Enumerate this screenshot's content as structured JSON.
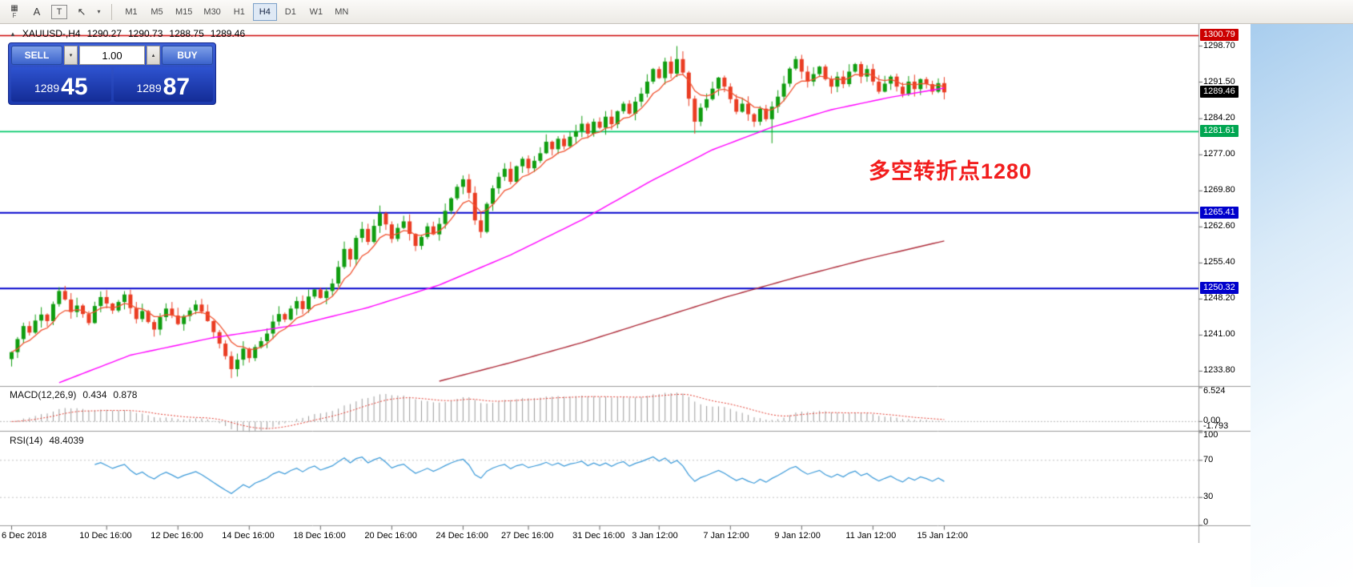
{
  "toolbar": {
    "icons": [
      {
        "glyph": "▦",
        "caption": "F"
      },
      {
        "glyph": "A"
      },
      {
        "glyph": "T"
      },
      {
        "glyph": "↖"
      },
      {
        "glyph": "▾"
      }
    ],
    "timeframes": [
      "M1",
      "M5",
      "M15",
      "M30",
      "H1",
      "H4",
      "D1",
      "W1",
      "MN"
    ],
    "active_timeframe": "H4"
  },
  "trade_panel": {
    "sell_label": "SELL",
    "buy_label": "BUY",
    "volume": "1.00",
    "spinner_down": "▾",
    "spinner_up": "▴",
    "sell_price_small": "1289",
    "sell_price_large": "45",
    "buy_price_small": "1289",
    "buy_price_large": "87"
  },
  "chart_header": {
    "symbol_arrow": "▲",
    "symbol": "XAUUSD-,H4",
    "open": "1290.27",
    "high": "1290.73",
    "low": "1288.75",
    "close": "1289.46"
  },
  "macd_panel": {
    "title": "MACD(12,26,9)",
    "value1": "0.434",
    "value2": "0.878"
  },
  "rsi_panel": {
    "title": "RSI(14)",
    "value": "48.4039"
  },
  "annotation": {
    "text": "多空转折点1280",
    "color": "#f21d1d"
  },
  "chart_data": {
    "type": "candlestick",
    "symbol": "XAUUSD-",
    "timeframe": "H4",
    "up_color": "#0f9d0f",
    "down_color": "#ea3c22",
    "closes": [
      1237.6,
      1240.2,
      1242.8,
      1241.5,
      1243.9,
      1245.1,
      1243.8,
      1247.2,
      1249.8,
      1248.1,
      1245.6,
      1246.9,
      1245.2,
      1243.4,
      1246.8,
      1248.6,
      1247.3,
      1245.9,
      1247.6,
      1249.1,
      1246.4,
      1244.2,
      1245.8,
      1243.6,
      1242.1,
      1244.6,
      1246.3,
      1244.9,
      1243.2,
      1244.8,
      1245.9,
      1247.1,
      1245.7,
      1243.8,
      1241.6,
      1239.3,
      1236.8,
      1234.2,
      1236.1,
      1238.3,
      1236.4,
      1238.6,
      1239.8,
      1241.3,
      1243.7,
      1245.2,
      1244.1,
      1246.3,
      1247.8,
      1246.2,
      1248.7,
      1250.1,
      1248.4,
      1249.8,
      1251.3,
      1254.6,
      1258.2,
      1256.1,
      1260.4,
      1262.2,
      1259.6,
      1262.8,
      1265.3,
      1263.1,
      1260.2,
      1262.4,
      1263.7,
      1261.2,
      1258.8,
      1260.6,
      1262.7,
      1261.1,
      1263.2,
      1265.8,
      1268.3,
      1270.6,
      1272.1,
      1269.4,
      1263.9,
      1261.6,
      1267.2,
      1270.3,
      1272.6,
      1274.2,
      1271.6,
      1274.7,
      1276.2,
      1274.3,
      1275.8,
      1277.3,
      1279.6,
      1278.1,
      1280.2,
      1278.7,
      1280.6,
      1281.7,
      1283.2,
      1281.2,
      1283.6,
      1282.4,
      1284.6,
      1283.1,
      1285.7,
      1287.2,
      1285.2,
      1287.6,
      1289.2,
      1291.6,
      1294.1,
      1292.3,
      1295.6,
      1293.2,
      1296.1,
      1293.4,
      1288.2,
      1283.6,
      1286.4,
      1288.1,
      1290.2,
      1292.4,
      1290.6,
      1288.1,
      1285.6,
      1287.2,
      1285.1,
      1283.6,
      1286.2,
      1284.1,
      1286.6,
      1288.6,
      1291.2,
      1294.2,
      1296.1,
      1293.6,
      1291.6,
      1293.1,
      1294.6,
      1292.1,
      1290.6,
      1292.6,
      1291.1,
      1293.6,
      1295.1,
      1292.6,
      1294.1,
      1291.6,
      1289.6,
      1291.2,
      1292.6,
      1290.6,
      1289.1,
      1291.6,
      1290.1,
      1292.1,
      1291.1,
      1289.6,
      1291.3,
      1289.46
    ],
    "wick_overrides": {
      "37": {
        "low": 1232.4
      },
      "59": {
        "high": 1263.6
      },
      "79": {
        "low": 1260.4
      },
      "112": {
        "high": 1298.7
      },
      "115": {
        "low": 1281.2
      },
      "128": {
        "low": 1279.3
      }
    },
    "ma_fast": {
      "period": 7,
      "color": "#f0512e"
    },
    "ma_mid": {
      "color": "#ff00ff",
      "anchors": [
        [
          8,
          1231.5
        ],
        [
          20,
          1237.0
        ],
        [
          34,
          1240.5
        ],
        [
          48,
          1243.0
        ],
        [
          60,
          1246.5
        ],
        [
          72,
          1251.0
        ],
        [
          84,
          1257.0
        ],
        [
          96,
          1264.0
        ],
        [
          108,
          1272.0
        ],
        [
          118,
          1278.0
        ],
        [
          128,
          1282.5
        ],
        [
          138,
          1286.0
        ],
        [
          148,
          1288.5
        ],
        [
          157,
          1290.3
        ]
      ]
    },
    "ma_slow": {
      "color": "#ad2a38",
      "anchors": [
        [
          72,
          1231.8
        ],
        [
          84,
          1235.5
        ],
        [
          96,
          1239.5
        ],
        [
          108,
          1244.0
        ],
        [
          120,
          1248.5
        ],
        [
          132,
          1252.5
        ],
        [
          144,
          1256.2
        ],
        [
          157,
          1259.8
        ]
      ]
    },
    "hlines": [
      {
        "price": 1300.79,
        "color": "#cc0000",
        "w": 1.4
      },
      {
        "price": 1281.61,
        "color": "#00c868",
        "w": 1.6
      },
      {
        "price": 1265.41,
        "color": "#0000cc",
        "w": 2
      },
      {
        "price": 1250.32,
        "color": "#0000cc",
        "w": 2
      }
    ],
    "y_ticks": [
      1298.7,
      1291.5,
      1284.2,
      1277.0,
      1269.8,
      1262.6,
      1255.4,
      1248.2,
      1241.0,
      1233.8
    ],
    "price_badges": [
      {
        "text": "1300.79",
        "price": 1300.79,
        "bg": "#cc0000"
      },
      {
        "text": "1289.46",
        "price": 1289.46,
        "bg": "#000000"
      },
      {
        "text": "1281.61",
        "price": 1281.61,
        "bg": "#00a651"
      },
      {
        "text": "1265.41",
        "price": 1265.41,
        "bg": "#0000cc"
      },
      {
        "text": "1250.32",
        "price": 1250.32,
        "bg": "#0000cc"
      }
    ],
    "macd_range": [
      -1.793,
      6.524
    ],
    "macd_axis": [
      {
        "text": "6.524",
        "v": 6.524
      },
      {
        "text": "0.00",
        "v": 0
      },
      {
        "text": "-1.793",
        "v": -1.793
      }
    ],
    "macd_signal_color": "#e23a2e",
    "macd_hist_color": "#9a9a9a",
    "rsi_color": "#3898d8",
    "rsi_levels": [
      70,
      30
    ],
    "rsi_axis": [
      {
        "text": "100",
        "v": 100
      },
      {
        "text": "70",
        "v": 70
      },
      {
        "text": "30",
        "v": 30
      },
      {
        "text": "0",
        "v": 0
      }
    ],
    "x_labels": [
      {
        "text": "6 Dec 2018",
        "idx": 0
      },
      {
        "text": "10 Dec 16:00",
        "idx": 16
      },
      {
        "text": "12 Dec 16:00",
        "idx": 28
      },
      {
        "text": "14 Dec 16:00",
        "idx": 40
      },
      {
        "text": "18 Dec 16:00",
        "idx": 52
      },
      {
        "text": "20 Dec 16:00",
        "idx": 64
      },
      {
        "text": "24 Dec 16:00",
        "idx": 76
      },
      {
        "text": "27 Dec 16:00",
        "idx": 87
      },
      {
        "text": "31 Dec 16:00",
        "idx": 99
      },
      {
        "text": "3 Jan 12:00",
        "idx": 109
      },
      {
        "text": "7 Jan 12:00",
        "idx": 121
      },
      {
        "text": "9 Jan 12:00",
        "idx": 133
      },
      {
        "text": "11 Jan 12:00",
        "idx": 145
      },
      {
        "text": "15 Jan 12:00",
        "idx": 157
      }
    ]
  }
}
